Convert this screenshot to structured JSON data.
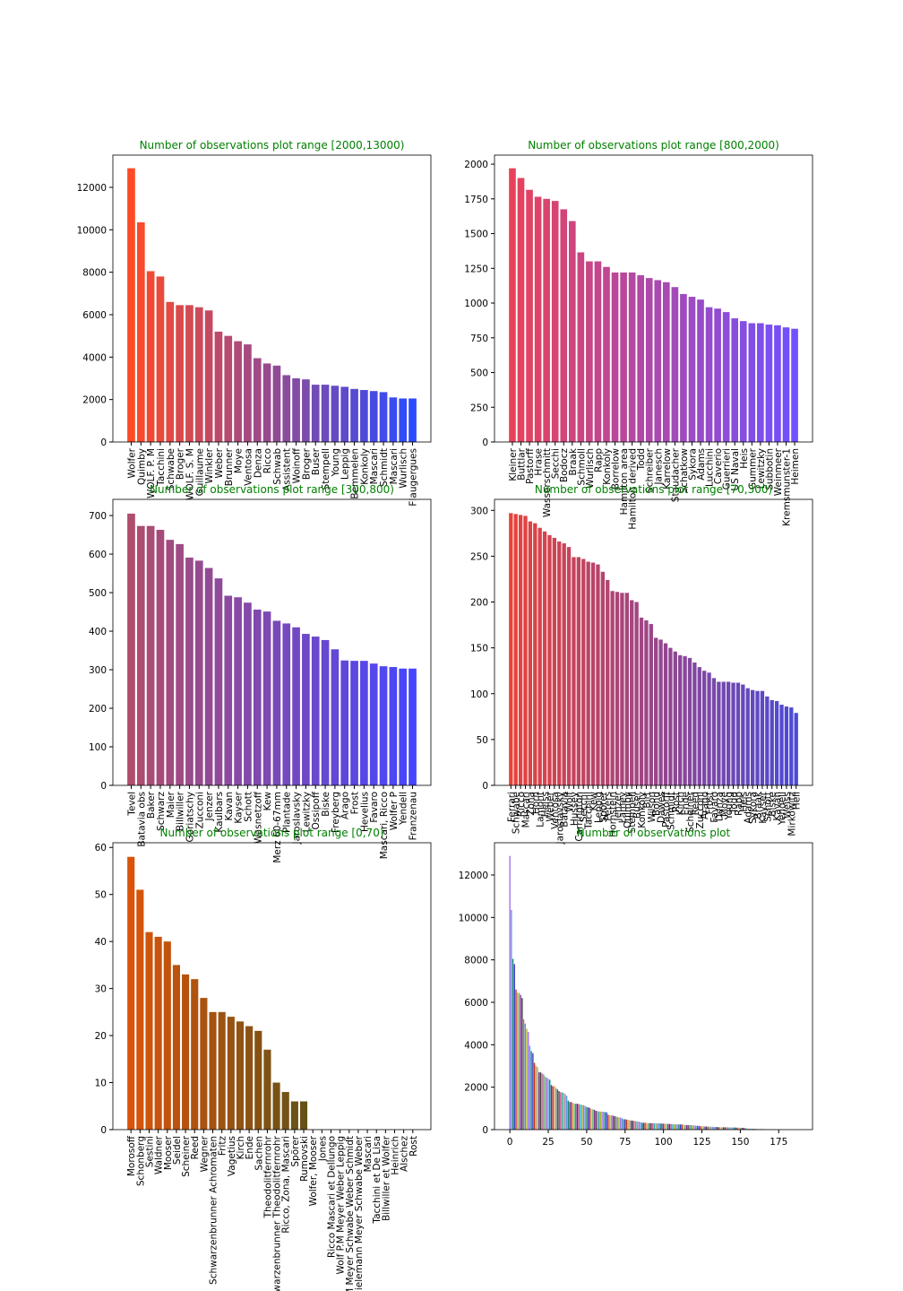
{
  "chart_data": [
    {
      "type": "bar",
      "title": "Number of observations plot range [2000,13000)",
      "categories": [
        "Wolfer",
        "Quimby",
        "WOLF. P. M",
        "Tacchini",
        "Schwabe",
        "Broger",
        "WOLF. S. M",
        "Guillaume",
        "Winkler",
        "Weber",
        "Brunner",
        "Moye",
        "Ventosa",
        "Denza",
        "Ricco",
        "Schwab",
        "Assistent",
        "Woinoff",
        "Broger",
        "Buser",
        "Stempell",
        "Young",
        "Leppig",
        "Bemmelen",
        "Konkoly",
        "Mascari",
        "Schmidt",
        "Mascari",
        "Wurlisch",
        "Flaugergues"
      ],
      "values": [
        12900,
        10350,
        8050,
        7800,
        6600,
        6450,
        6450,
        6350,
        6200,
        5200,
        5000,
        4750,
        4600,
        3950,
        3700,
        3600,
        3150,
        3000,
        2950,
        2700,
        2700,
        2650,
        2600,
        2500,
        2450,
        2400,
        2350,
        2100,
        2050,
        2050
      ],
      "color_gradient": [
        "#ff4a26",
        "#2a4bff"
      ],
      "ylim": [
        0,
        13520
      ],
      "yticks": [
        0,
        2000,
        4000,
        6000,
        8000,
        10000,
        12000
      ]
    },
    {
      "type": "bar",
      "title": "Number of observations plot range [800,2000)",
      "categories": [
        "Kleiner",
        "Buttlar",
        "Pastorff",
        "Hrase",
        "Wasserschmitt",
        "Secchi",
        "Bodocz",
        "Braak",
        "Schmoll",
        "Wurlisch",
        "Rapp",
        "Konkoly",
        "Borrelow",
        "Hamilton area",
        "Hamilton derived",
        "Todd",
        "Schreiber",
        "Janesch",
        "Karrelow",
        "Staudacher",
        "Schatkow",
        "Sykora",
        "Adams",
        "Lucchini",
        "Caverio",
        "Guerrieri",
        "US Naval",
        "Heis",
        "Gummer",
        "Lewitzky",
        "Subbotin",
        "Weinmeer",
        "Kremsmunster-1",
        "Heimen"
      ],
      "values": [
        1970,
        1900,
        1815,
        1765,
        1750,
        1735,
        1675,
        1590,
        1365,
        1300,
        1300,
        1260,
        1220,
        1220,
        1220,
        1200,
        1180,
        1165,
        1150,
        1115,
        1065,
        1045,
        1025,
        970,
        960,
        935,
        890,
        870,
        855,
        855,
        845,
        840,
        825,
        815
      ],
      "color_gradient": [
        "#e8425a",
        "#7050ff"
      ],
      "ylim": [
        0,
        2065
      ],
      "yticks": [
        0,
        250,
        500,
        750,
        1000,
        1250,
        1500,
        1750,
        2000
      ]
    },
    {
      "type": "bar",
      "title": "Number of observations plot range [300,800)",
      "categories": [
        "Tevel",
        "Batavia obs",
        "Baker",
        "Schwarz",
        "Maier",
        "Billwiller",
        "Goriatschy",
        "Zucconi",
        "Jenzer",
        "Kaulbars",
        "Kavan",
        "Kayser",
        "Schott",
        "Wasnetzoff",
        "Kew",
        "Merz 60-67mm",
        "Plantade",
        "Jaroslavsky",
        "Lewitzky",
        "Ossipoff",
        "Biske",
        "Freyberg",
        "Arago",
        "Frost",
        "Hevelius",
        "Favaro",
        "Mascari, Ricco",
        "Wolfer P",
        "Yendell",
        "Franzenau"
      ],
      "values": [
        705,
        673,
        673,
        663,
        637,
        626,
        591,
        583,
        564,
        537,
        492,
        488,
        474,
        456,
        451,
        427,
        420,
        410,
        393,
        386,
        377,
        353,
        324,
        323,
        323,
        316,
        309,
        307,
        303,
        303
      ],
      "color_gradient": [
        "#b04c6c",
        "#4646ff"
      ],
      "ylim": [
        0,
        742
      ],
      "yticks": [
        0,
        100,
        200,
        300,
        400,
        500,
        600,
        700
      ]
    },
    {
      "type": "bar",
      "title": "Number of observations plot range [70,300)",
      "categories": [
        "Ferrari",
        "Schwabe",
        "Ricco",
        "Mascari",
        "Zona",
        "Horn",
        "Lamont",
        "Heiss",
        "Weber",
        "Ventosa",
        "Jaroslavsky",
        "Batavia",
        "Wolf",
        "Hussey",
        "Carrington",
        "Secchi",
        "Tacchini",
        "Kew",
        "Leppig",
        "Spörer",
        "Peters",
        "Hornstein",
        "Jenzer",
        "Lamey",
        "Quimby",
        "Stempell",
        "Buser",
        "Konkoly",
        "Birt",
        "Wilson",
        "Bond",
        "Dawes",
        "Pastorff",
        "Schmidt",
        "Rost",
        "Kirch",
        "Ende",
        "Scheiner",
        "Reed",
        "Zucconi",
        "Arago",
        "Frost",
        "Favaro",
        "Denza",
        "Moye",
        "Young",
        "Todd",
        "Rapp",
        "Heis",
        "Adams",
        "Sykora",
        "Braak",
        "Kayser",
        "Schott",
        "Biske",
        "Kavan",
        "Yendell",
        "Weiss",
        "Mirkowitz",
        "Hell"
      ],
      "values": [
        297,
        296,
        295,
        294,
        288,
        286,
        281,
        277,
        273,
        270,
        266,
        264,
        260,
        249,
        249,
        247,
        244,
        243,
        241,
        233,
        224,
        212,
        211,
        210,
        210,
        202,
        200,
        183,
        180,
        176,
        161,
        159,
        155,
        150,
        146,
        142,
        141,
        139,
        134,
        129,
        125,
        123,
        117,
        113,
        113,
        113,
        112,
        112,
        110,
        106,
        104,
        103,
        103,
        97,
        93,
        92,
        88,
        86,
        85,
        79
      ],
      "color_gradient": [
        "#e8423a",
        "#4a4ad8"
      ],
      "ylim": [
        0,
        312
      ],
      "yticks": [
        0,
        50,
        100,
        150,
        200,
        250,
        300
      ]
    },
    {
      "type": "bar",
      "title": "Number of observations plot range [0,70)",
      "categories": [
        "Morosoff",
        "Schonberg",
        "Sestini",
        "Waldner",
        "Mooser",
        "Seidel",
        "Scheiner",
        "Reed",
        "Wegner",
        "Schwarzenbrunner Achromaten",
        "Fritz",
        "Vagetius",
        "Kirch",
        "Ende",
        "Sachen",
        "Theodolitfernrohr",
        "Schwarzenbrunner Theodolitfernrohr",
        "Ricco, Zona, Mascari",
        "Spörer",
        "Rumovski",
        "Wolfer, Mooser",
        "Jones",
        "Ricco Mascari et Dellungo",
        "Wolf P.M Meyer Weber Leppig",
        "Wolf P.M Meyer Schwabe Weber Schmidt",
        "Wolf Mielemann Meyer Schwabe Weber",
        "Mascari",
        "Tacchini et De Lisa",
        "Billwiller et Wolfer",
        "Heinrich",
        "Alschez",
        "Rost"
      ],
      "values": [
        58,
        51,
        42,
        41,
        40,
        35,
        33,
        32,
        28,
        25,
        25,
        24,
        23,
        22,
        21,
        17,
        10,
        8,
        6,
        6,
        0,
        0,
        0,
        0,
        0,
        0,
        0,
        0,
        0,
        0,
        0,
        0
      ],
      "color_gradient": [
        "#d9540a",
        "#1e5020"
      ],
      "ylim": [
        0,
        61
      ],
      "yticks": [
        0,
        10,
        20,
        30,
        40,
        50,
        60
      ]
    },
    {
      "type": "bar_numeric",
      "title": "Number of observations plot",
      "x": [
        0,
        1,
        2,
        3,
        4,
        5,
        6,
        7,
        8,
        9,
        10,
        11,
        12,
        13,
        14,
        15,
        16,
        17,
        18,
        19,
        20,
        21,
        22,
        23,
        24,
        25,
        26,
        27,
        28,
        29,
        30,
        31,
        32,
        33,
        34,
        35,
        36,
        37,
        38,
        39,
        40,
        41,
        42,
        43,
        44,
        45,
        46,
        47,
        48,
        49,
        50,
        51,
        52,
        53,
        54,
        55,
        56,
        57,
        58,
        59,
        60,
        61,
        62,
        63,
        64,
        65,
        66,
        67,
        68,
        69,
        70,
        71,
        72,
        73,
        74,
        75,
        76,
        77,
        78,
        79,
        80,
        81,
        82,
        83,
        84,
        85,
        86,
        87,
        88,
        89,
        90,
        91,
        92,
        93,
        94,
        95,
        96,
        97,
        98,
        99,
        100,
        101,
        102,
        103,
        104,
        105,
        106,
        107,
        108,
        109,
        110,
        111,
        112,
        113,
        114,
        115,
        116,
        117,
        118,
        119,
        120,
        121,
        122,
        123,
        124,
        125,
        126,
        127,
        128,
        129,
        130,
        131,
        132,
        133,
        134,
        135,
        136,
        137,
        138,
        139,
        140,
        141,
        142,
        143,
        144,
        145,
        146,
        147,
        148,
        149,
        150,
        151,
        152,
        153,
        154,
        155,
        156,
        157,
        158,
        159,
        160,
        161,
        162,
        163,
        164,
        165,
        166,
        167,
        168,
        169,
        170,
        171,
        172,
        173,
        174,
        175,
        176,
        177,
        178,
        179,
        180,
        181,
        182,
        183,
        184,
        185
      ],
      "values": [
        12900,
        10350,
        8050,
        7800,
        6600,
        6450,
        6450,
        6350,
        6200,
        5200,
        5000,
        4750,
        4600,
        3950,
        3700,
        3600,
        3150,
        3000,
        2950,
        2700,
        2700,
        2650,
        2600,
        2500,
        2450,
        2400,
        2350,
        2100,
        2050,
        2050,
        1970,
        1900,
        1815,
        1765,
        1750,
        1735,
        1675,
        1590,
        1365,
        1300,
        1300,
        1260,
        1220,
        1220,
        1220,
        1200,
        1180,
        1165,
        1150,
        1115,
        1065,
        1045,
        1025,
        970,
        960,
        935,
        890,
        870,
        855,
        855,
        845,
        840,
        825,
        815,
        705,
        673,
        673,
        663,
        637,
        626,
        591,
        583,
        564,
        537,
        492,
        488,
        474,
        456,
        451,
        427,
        420,
        410,
        393,
        386,
        377,
        353,
        324,
        323,
        323,
        316,
        309,
        307,
        303,
        303,
        297,
        296,
        295,
        294,
        288,
        286,
        281,
        277,
        273,
        270,
        266,
        264,
        260,
        249,
        249,
        247,
        244,
        243,
        241,
        233,
        224,
        212,
        211,
        210,
        210,
        202,
        200,
        183,
        180,
        176,
        161,
        159,
        155,
        150,
        146,
        142,
        141,
        139,
        134,
        129,
        125,
        123,
        117,
        113,
        113,
        113,
        112,
        112,
        110,
        106,
        104,
        103,
        103,
        97,
        93,
        92,
        88,
        86,
        85,
        79,
        58,
        51,
        42,
        41,
        40,
        35,
        33,
        32,
        28,
        25,
        25,
        24,
        23,
        22,
        21,
        17,
        10,
        8,
        6,
        6,
        0,
        0,
        0,
        0,
        0,
        0,
        0,
        0,
        0,
        0,
        0,
        0
      ],
      "colors": [
        "#a070f0",
        "#5a9be0",
        "#1e8a6e",
        "#3a3ac8",
        "#c03020",
        "#e0a060",
        "#70c070",
        "#8030a0",
        "#404040",
        "#d06090",
        "#20b0c0",
        "#b0b020"
      ],
      "xlim": [
        -10,
        197
      ],
      "xticks": [
        0,
        25,
        50,
        75,
        100,
        125,
        150,
        175
      ],
      "ylim": [
        0,
        13520
      ],
      "yticks": [
        0,
        2000,
        4000,
        6000,
        8000,
        10000,
        12000
      ]
    }
  ]
}
